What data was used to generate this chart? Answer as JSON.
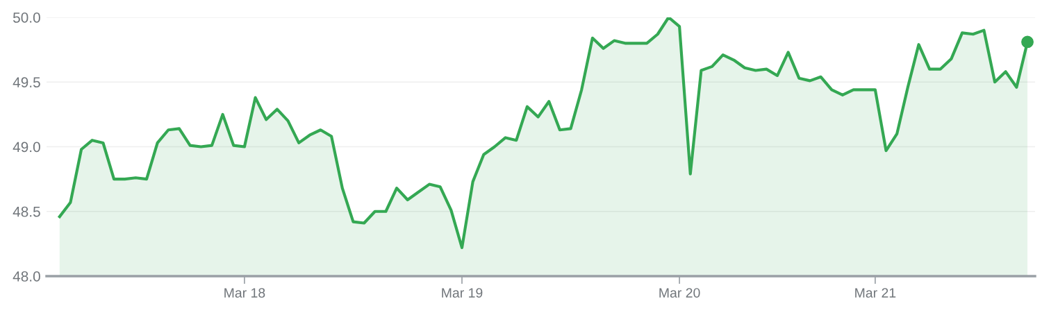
{
  "chart_data": {
    "type": "area",
    "categories": [
      null,
      null,
      null,
      null,
      null,
      null,
      null,
      null,
      null,
      null,
      null,
      null,
      null,
      null,
      null,
      null,
      null,
      "Mar 18",
      null,
      null,
      null,
      null,
      null,
      null,
      null,
      null,
      null,
      null,
      null,
      null,
      null,
      null,
      null,
      null,
      null,
      null,
      null,
      "Mar 19",
      null,
      null,
      null,
      null,
      null,
      null,
      null,
      null,
      null,
      null,
      null,
      null,
      null,
      null,
      null,
      null,
      null,
      null,
      null,
      "Mar 20",
      null,
      null,
      null,
      null,
      null,
      null,
      null,
      null,
      null,
      null,
      null,
      null,
      null,
      null,
      null,
      null,
      null,
      "Mar 21",
      null,
      null,
      null,
      null,
      null,
      null,
      null,
      null,
      null,
      null,
      null,
      null,
      null,
      null
    ],
    "series": [
      {
        "color": "#34a853",
        "values": [
          48.46,
          48.57,
          48.98,
          49.05,
          49.03,
          48.75,
          48.75,
          48.76,
          48.75,
          49.03,
          49.13,
          49.14,
          49.01,
          49.0,
          49.01,
          49.25,
          49.01,
          49.0,
          49.38,
          49.21,
          49.29,
          49.2,
          49.03,
          49.09,
          49.13,
          49.08,
          48.68,
          48.42,
          48.41,
          48.5,
          48.5,
          48.68,
          48.59,
          48.65,
          48.71,
          48.69,
          48.51,
          48.22,
          48.73,
          48.94,
          49.0,
          49.07,
          49.05,
          49.31,
          49.23,
          49.35,
          49.13,
          49.14,
          49.44,
          49.84,
          49.76,
          49.82,
          49.8,
          49.8,
          49.8,
          49.87,
          50.0,
          49.93,
          48.79,
          49.59,
          49.62,
          49.71,
          49.67,
          49.61,
          49.59,
          49.6,
          49.55,
          49.73,
          49.53,
          49.51,
          49.54,
          49.44,
          49.4,
          49.44,
          49.44,
          49.44,
          48.97,
          49.1,
          49.46,
          49.79,
          49.6,
          49.6,
          49.68,
          49.88,
          49.87,
          49.9,
          49.5,
          49.58,
          49.46,
          49.81
        ]
      },
      {
        "type": "scatter",
        "color": "#34a853",
        "marker": "circle",
        "values": [
          null,
          null,
          null,
          null,
          null,
          null,
          null,
          null,
          null,
          null,
          null,
          null,
          null,
          null,
          null,
          null,
          null,
          null,
          null,
          null,
          null,
          null,
          null,
          null,
          null,
          null,
          null,
          null,
          null,
          null,
          null,
          null,
          null,
          null,
          null,
          null,
          null,
          null,
          null,
          null,
          null,
          null,
          null,
          null,
          null,
          null,
          null,
          null,
          null,
          null,
          null,
          null,
          null,
          null,
          null,
          null,
          null,
          null,
          null,
          null,
          null,
          null,
          null,
          null,
          null,
          null,
          null,
          null,
          null,
          null,
          null,
          null,
          null,
          null,
          null,
          null,
          null,
          null,
          null,
          null,
          null,
          null,
          null,
          null,
          null,
          null,
          null,
          null,
          null,
          49.81
        ]
      }
    ],
    "ylim": [
      48.0,
      50.0
    ],
    "yticks": [
      {
        "value": 48.0,
        "label": "48.0"
      },
      {
        "value": 48.5,
        "label": "48.5"
      },
      {
        "value": 49.0,
        "label": "49.0"
      },
      {
        "value": 49.5,
        "label": "49.5"
      },
      {
        "value": 50.0,
        "label": "50.0"
      }
    ],
    "grid": "y",
    "legend": false
  }
}
